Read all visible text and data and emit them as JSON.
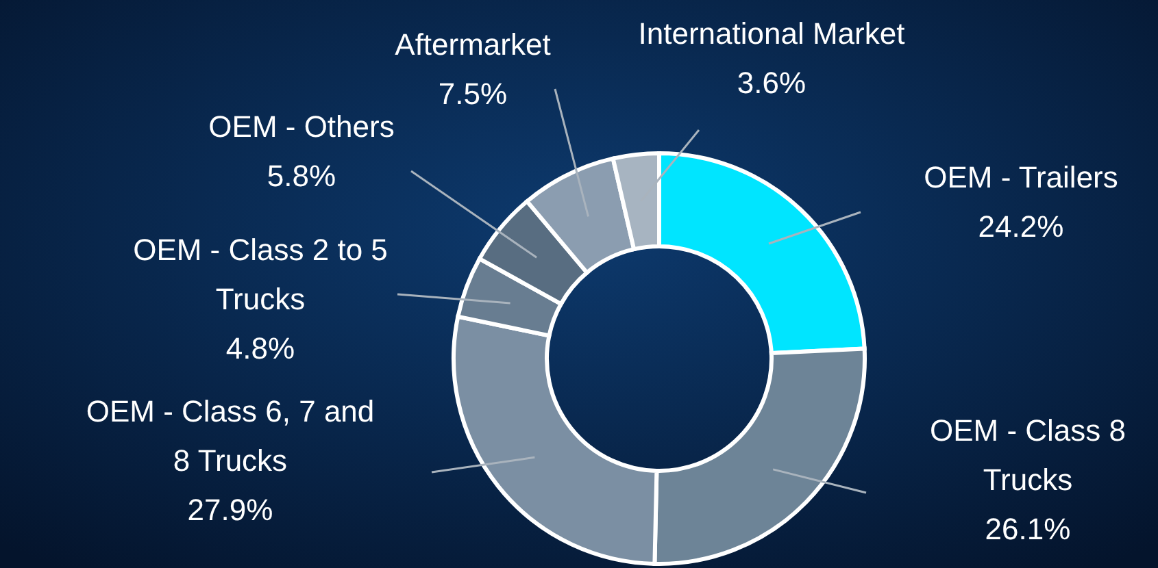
{
  "chart_data": {
    "type": "donut",
    "categories": [
      "OEM - Trailers",
      "OEM - Class 8 Trucks",
      "OEM - Class 6, 7 and 8 Trucks",
      "OEM - Class 2 to 5 Trucks",
      "OEM - Others",
      "Aftermarket",
      "International Market"
    ],
    "values": [
      24.2,
      26.1,
      27.9,
      4.8,
      5.8,
      7.5,
      3.6
    ],
    "value_labels": [
      "24.2%",
      "26.1%",
      "27.9%",
      "4.8%",
      "5.8%",
      "7.5%",
      "3.6%"
    ],
    "colors": [
      "#00e5ff",
      "#6d8497",
      "#7b8fa3",
      "#687d91",
      "#586d81",
      "#8b9db0",
      "#a7b4c1"
    ]
  }
}
